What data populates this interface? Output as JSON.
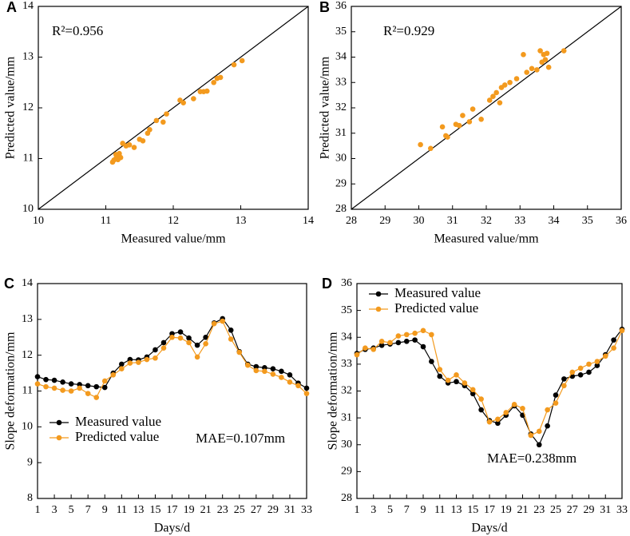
{
  "chart_data": [
    {
      "type": "scatter",
      "panel_label": "A",
      "annotation": "R²=0.956",
      "xlabel": "Measured value/mm",
      "ylabel": "Predicted value/mm",
      "xlim": [
        10,
        14
      ],
      "ylim": [
        10,
        14
      ],
      "xticks": [
        10,
        11,
        12,
        13,
        14
      ],
      "yticks": [
        10,
        11,
        12,
        13,
        14
      ],
      "diagonal": true,
      "color": "#f39a1e",
      "x": [
        11.1,
        11.12,
        11.15,
        11.18,
        11.2,
        11.22,
        11.15,
        11.2,
        11.25,
        11.3,
        11.35,
        11.42,
        11.5,
        11.55,
        11.62,
        11.65,
        11.75,
        11.85,
        11.9,
        12.1,
        12.15,
        12.3,
        12.4,
        12.45,
        12.5,
        12.6,
        12.65,
        12.7,
        12.9,
        13.02
      ],
      "values": [
        10.93,
        10.97,
        11.0,
        10.98,
        11.05,
        11.02,
        11.08,
        11.1,
        11.3,
        11.25,
        11.27,
        11.22,
        11.38,
        11.35,
        11.5,
        11.57,
        11.75,
        11.72,
        11.88,
        12.15,
        12.1,
        12.18,
        12.32,
        12.32,
        12.33,
        12.5,
        12.58,
        12.6,
        12.85,
        12.93
      ]
    },
    {
      "type": "scatter",
      "panel_label": "B",
      "annotation": "R²=0.929",
      "xlabel": "Measured value/mm",
      "ylabel": "Predicted value/mm",
      "xlim": [
        28,
        36
      ],
      "ylim": [
        28,
        36
      ],
      "xticks": [
        28,
        29,
        30,
        31,
        32,
        33,
        34,
        35,
        36
      ],
      "yticks": [
        28,
        29,
        30,
        31,
        32,
        33,
        34,
        35,
        36
      ],
      "diagonal": true,
      "color": "#f39a1e",
      "x": [
        30.05,
        30.35,
        30.7,
        30.8,
        30.85,
        31.1,
        31.2,
        31.3,
        31.5,
        31.6,
        31.85,
        32.1,
        32.2,
        32.3,
        32.4,
        32.45,
        32.55,
        32.7,
        32.9,
        33.1,
        33.2,
        33.35,
        33.5,
        33.6,
        33.65,
        33.7,
        33.75,
        33.8,
        33.85,
        34.3
      ],
      "values": [
        30.55,
        30.4,
        31.25,
        30.9,
        30.85,
        31.35,
        31.3,
        31.7,
        31.45,
        31.95,
        31.55,
        32.3,
        32.45,
        32.6,
        32.2,
        32.8,
        32.9,
        33.0,
        33.15,
        34.1,
        33.4,
        33.55,
        33.5,
        34.25,
        33.8,
        34.1,
        33.9,
        34.15,
        33.6,
        34.25
      ]
    },
    {
      "type": "line",
      "panel_label": "C",
      "annotation": "MAE=0.107mm",
      "xlabel": "Days/d",
      "ylabel": "Slope deformation/mm",
      "xlim": [
        1,
        33
      ],
      "ylim": [
        8,
        14
      ],
      "xticks": [
        1,
        3,
        5,
        7,
        9,
        11,
        13,
        15,
        17,
        19,
        21,
        23,
        25,
        27,
        29,
        31,
        33
      ],
      "yticks": [
        8,
        9,
        10,
        11,
        12,
        13,
        14
      ],
      "legend": "lower left",
      "x": [
        1,
        2,
        3,
        4,
        5,
        6,
        7,
        8,
        9,
        10,
        11,
        12,
        13,
        14,
        15,
        16,
        17,
        18,
        19,
        20,
        21,
        22,
        23,
        24,
        25,
        26,
        27,
        28,
        29,
        30,
        31,
        32,
        33
      ],
      "series": [
        {
          "name": "Measured value",
          "color": "#000000",
          "values": [
            11.4,
            11.32,
            11.3,
            11.25,
            11.2,
            11.18,
            11.15,
            11.12,
            11.1,
            11.5,
            11.75,
            11.88,
            11.87,
            11.95,
            12.15,
            12.35,
            12.6,
            12.65,
            12.48,
            12.28,
            12.5,
            12.9,
            13.02,
            12.7,
            12.1,
            11.75,
            11.68,
            11.65,
            11.62,
            11.55,
            11.45,
            11.22,
            11.08
          ]
        },
        {
          "name": "Predicted value",
          "color": "#f39a1e",
          "values": [
            11.2,
            11.12,
            11.08,
            11.02,
            11.0,
            11.08,
            10.93,
            10.82,
            11.28,
            11.45,
            11.62,
            11.78,
            11.8,
            11.88,
            11.92,
            12.2,
            12.5,
            12.48,
            12.35,
            11.95,
            12.32,
            12.88,
            12.95,
            12.45,
            12.08,
            11.72,
            11.57,
            11.55,
            11.47,
            11.38,
            11.25,
            11.15,
            10.93
          ]
        }
      ]
    },
    {
      "type": "line",
      "panel_label": "D",
      "annotation": "MAE=0.238mm",
      "xlabel": "Days/d",
      "ylabel": "Slope deformation/mm",
      "xlim": [
        1,
        33
      ],
      "ylim": [
        28,
        36
      ],
      "xticks": [
        1,
        3,
        5,
        7,
        9,
        11,
        13,
        15,
        17,
        19,
        21,
        23,
        25,
        27,
        29,
        31,
        33
      ],
      "yticks": [
        28,
        29,
        30,
        31,
        32,
        33,
        34,
        35,
        36
      ],
      "legend": "upper left",
      "x": [
        1,
        2,
        3,
        4,
        5,
        6,
        7,
        8,
        9,
        10,
        11,
        12,
        13,
        14,
        15,
        16,
        17,
        18,
        19,
        20,
        21,
        22,
        23,
        24,
        25,
        26,
        27,
        28,
        29,
        30,
        31,
        32,
        33
      ],
      "series": [
        {
          "name": "Measured value",
          "color": "#000000",
          "values": [
            33.4,
            33.55,
            33.6,
            33.7,
            33.75,
            33.8,
            33.85,
            33.9,
            33.65,
            33.1,
            32.55,
            32.3,
            32.35,
            32.2,
            31.9,
            31.3,
            30.9,
            30.8,
            31.1,
            31.45,
            31.1,
            30.4,
            30.0,
            30.7,
            31.85,
            32.45,
            32.55,
            32.6,
            32.7,
            32.95,
            33.35,
            33.9,
            34.3
          ]
        },
        {
          "name": "Predicted value",
          "color": "#f39a1e",
          "values": [
            33.35,
            33.6,
            33.55,
            33.85,
            33.8,
            34.05,
            34.1,
            34.15,
            34.25,
            34.1,
            32.8,
            32.4,
            32.6,
            32.3,
            32.05,
            31.7,
            30.85,
            30.95,
            31.2,
            31.5,
            31.35,
            30.35,
            30.5,
            31.3,
            31.55,
            32.2,
            32.7,
            32.85,
            33.0,
            33.1,
            33.3,
            33.6,
            34.25
          ]
        }
      ]
    }
  ]
}
